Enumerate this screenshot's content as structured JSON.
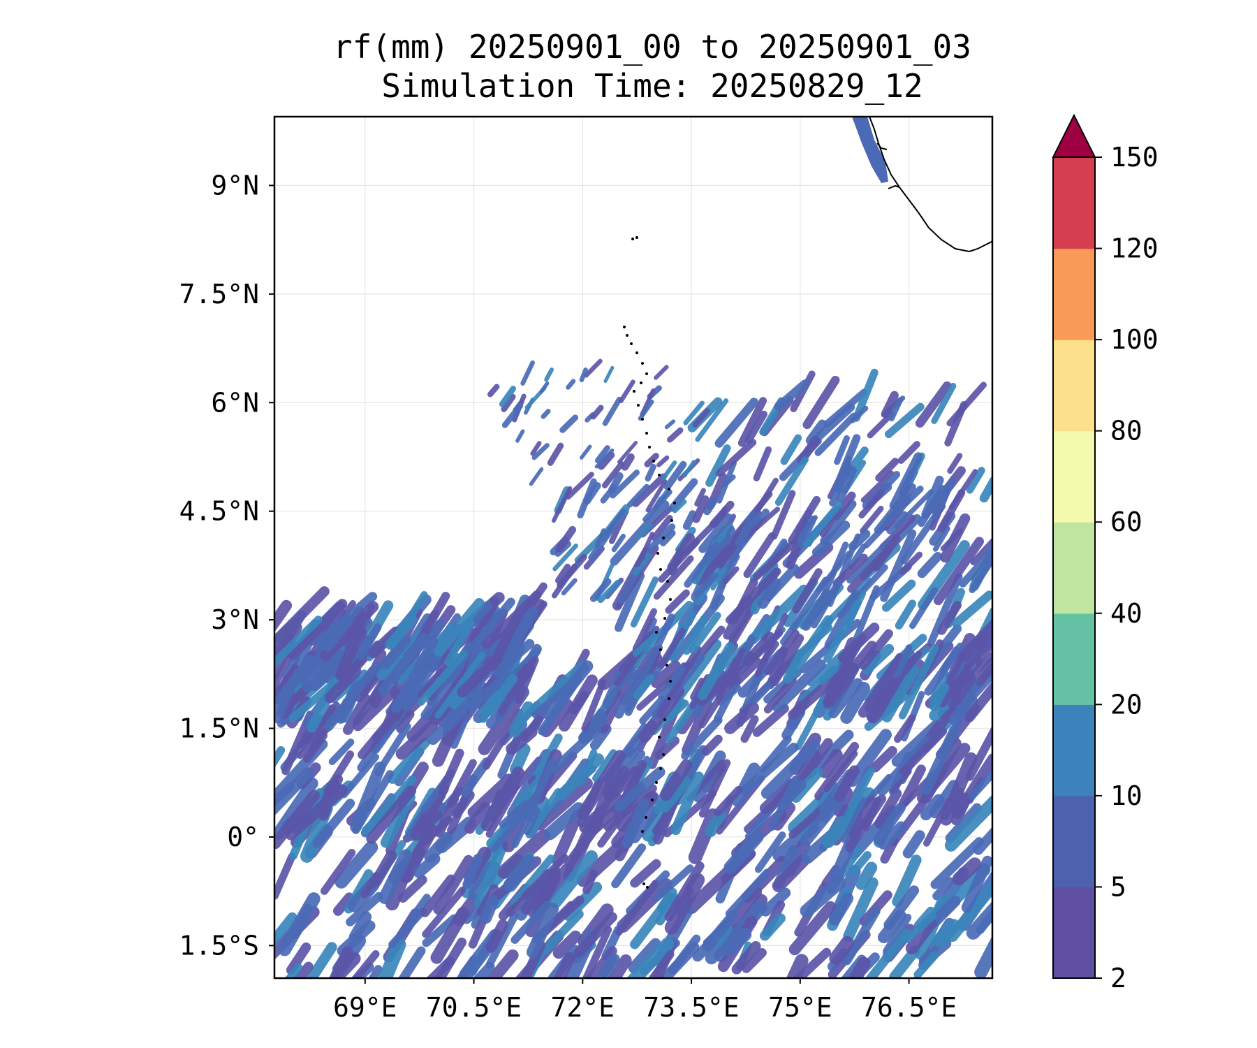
{
  "title": {
    "line1": "rf(mm) 20250901_00 to 20250901_03",
    "line2": "Simulation Time: 20250829_12"
  },
  "map": {
    "lon_range": [
      67.75,
      77.65
    ],
    "lat_range": [
      -1.95,
      9.95
    ],
    "lat_ticks": [
      {
        "value": 9,
        "label": "9°N"
      },
      {
        "value": 7.5,
        "label": "7.5°N"
      },
      {
        "value": 6,
        "label": "6°N"
      },
      {
        "value": 4.5,
        "label": "4.5°N"
      },
      {
        "value": 3,
        "label": "3°N"
      },
      {
        "value": 1.5,
        "label": "1.5°N"
      },
      {
        "value": 0,
        "label": "0°"
      },
      {
        "value": -1.5,
        "label": "1.5°S"
      }
    ],
    "lon_ticks": [
      {
        "value": 69,
        "label": "69°E"
      },
      {
        "value": 70.5,
        "label": "70.5°E"
      },
      {
        "value": 72,
        "label": "72°E"
      },
      {
        "value": 73.5,
        "label": "73.5°E"
      },
      {
        "value": 75,
        "label": "75°E"
      },
      {
        "value": 76.5,
        "label": "76.5°E"
      }
    ],
    "gridlines": true,
    "field_color": "#5b55a8",
    "field_color_alt": "#4a6ab5",
    "field_color_accent": "#3a86bb"
  },
  "colorbar": {
    "levels": [
      {
        "label": "2",
        "color": "#5e4fa2"
      },
      {
        "label": "5",
        "color": "#4d62ae"
      },
      {
        "label": "10",
        "color": "#3b83ba"
      },
      {
        "label": "20",
        "color": "#66c2a5"
      },
      {
        "label": "40",
        "color": "#bfe5a0"
      },
      {
        "label": "60",
        "color": "#f3faad"
      },
      {
        "label": "80",
        "color": "#fde08b"
      },
      {
        "label": "100",
        "color": "#f99b57"
      },
      {
        "label": "120",
        "color": "#d53e4f"
      },
      {
        "label": "150",
        "color": ""
      }
    ],
    "extend_color": "#9e0142"
  }
}
